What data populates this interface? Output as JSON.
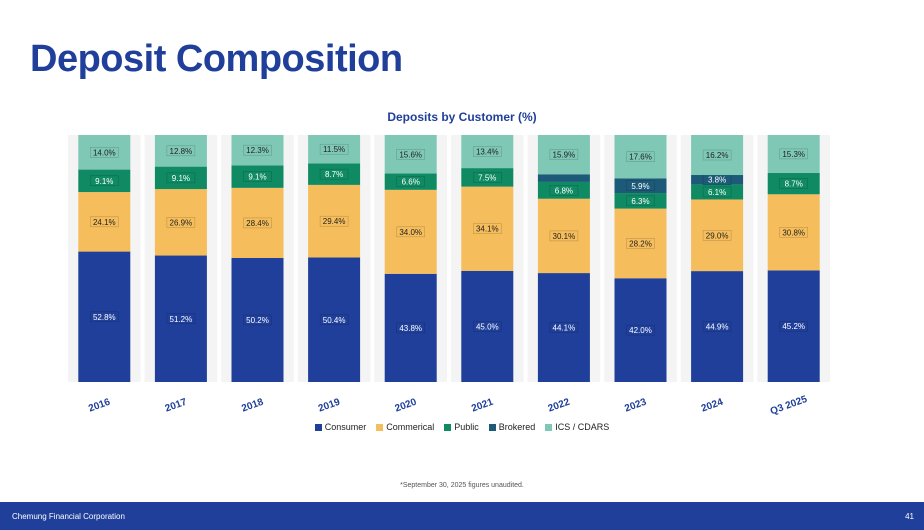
{
  "page_title": "Deposit Composition",
  "chart_data": {
    "type": "bar",
    "stacked": true,
    "title": "Deposits by Customer (%)",
    "categories": [
      "2016",
      "2017",
      "2018",
      "2019",
      "2020",
      "2021",
      "2022",
      "2023",
      "2024",
      "Q3 2025"
    ],
    "series": [
      {
        "name": "Consumer",
        "color": "#1f3f9a",
        "values": [
          52.8,
          51.2,
          50.2,
          50.4,
          43.8,
          45.0,
          44.1,
          42.0,
          44.9,
          45.2
        ],
        "labels": [
          "52.8%",
          "51.2%",
          "50.2%",
          "50.4%",
          "43.8%",
          "45.0%",
          "44.1%",
          "42.0%",
          "44.9%",
          "45.2%"
        ]
      },
      {
        "name": "Commerical",
        "color": "#f5bd5b",
        "values": [
          24.1,
          26.9,
          28.4,
          29.4,
          34.0,
          34.1,
          30.1,
          28.2,
          29.0,
          30.8
        ],
        "labels": [
          "24.1%",
          "26.9%",
          "28.4%",
          "29.4%",
          "34.0%",
          "34.1%",
          "30.1%",
          "28.2%",
          "29.0%",
          "30.8%"
        ]
      },
      {
        "name": "Public",
        "color": "#0f8a62",
        "values": [
          9.1,
          9.1,
          9.1,
          8.7,
          6.6,
          7.5,
          6.8,
          6.3,
          6.1,
          8.7
        ],
        "labels": [
          "9.1%",
          "9.1%",
          "9.1%",
          "8.7%",
          "6.6%",
          "7.5%",
          "6.8%",
          "6.3%",
          "6.1%",
          "8.7%"
        ]
      },
      {
        "name": "Brokered",
        "color": "#1c5a78",
        "values": [
          0,
          0,
          0,
          0,
          0,
          0,
          3.1,
          5.9,
          3.8,
          0
        ],
        "labels": [
          "",
          "",
          "",
          "",
          "",
          "",
          "",
          "5.9%",
          "3.8%",
          ""
        ]
      },
      {
        "name": "ICS / CDARS",
        "color": "#7ec8b5",
        "values": [
          14.0,
          12.8,
          12.3,
          11.5,
          15.6,
          13.4,
          15.9,
          17.6,
          16.2,
          15.3
        ],
        "labels": [
          "14.0%",
          "12.8%",
          "12.3%",
          "11.5%",
          "15.6%",
          "13.4%",
          "15.9%",
          "17.6%",
          "16.2%",
          "15.3%"
        ]
      }
    ],
    "ylim": [
      0,
      100
    ],
    "legend_position": "bottom",
    "grid": false
  },
  "footnote": "*September 30, 2025 figures unaudited.",
  "footer": {
    "company": "Chemung Financial Corporation",
    "page_number": "41"
  }
}
